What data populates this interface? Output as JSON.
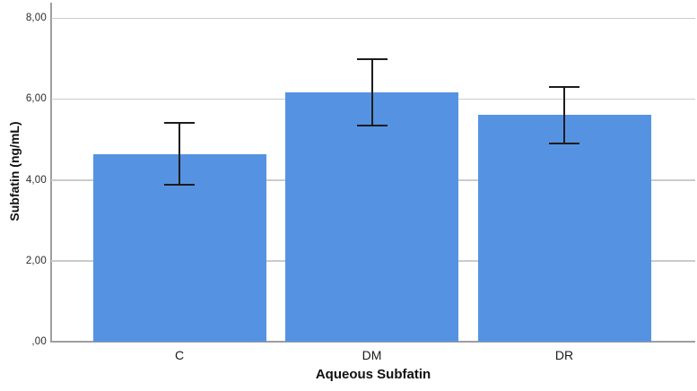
{
  "chart_data": {
    "type": "bar",
    "title": "",
    "xlabel": "Aqueous Subfatin",
    "ylabel": "Subfatin (ng/mL)",
    "categories": [
      "C",
      "DM",
      "DR"
    ],
    "values": [
      4.64,
      6.16,
      5.6
    ],
    "error_lower": [
      3.86,
      5.32,
      4.87
    ],
    "error_upper": [
      5.42,
      7.01,
      6.32
    ],
    "ylim": [
      0,
      8
    ],
    "ytick_values": [
      0,
      2,
      4,
      6,
      8
    ],
    "yticks": [
      ",00",
      "2,00",
      "4,00",
      "6,00",
      "8,00"
    ],
    "grid": "horizontal",
    "legend": "none",
    "bar_color": "#5593e2",
    "error_color": "#1c1c1c",
    "gridline_color": "#cbcbcb",
    "axis_color": "#9e9e9e",
    "background_color": "#ffffff"
  }
}
